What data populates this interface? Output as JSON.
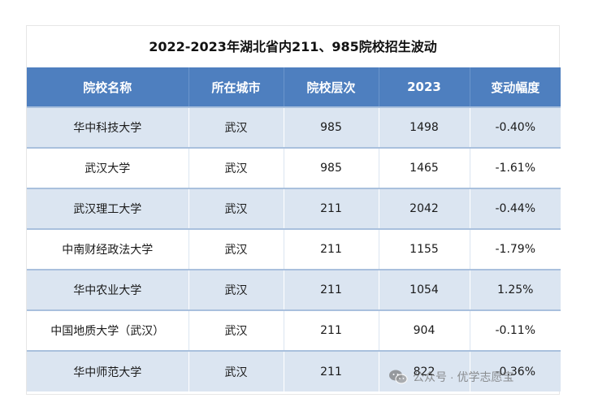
{
  "title": "2022-2023年湖北省内211、985院校招生波动",
  "headers": [
    "院校名称",
    "所在城市",
    "院校层次",
    "2023",
    "变动幅度"
  ],
  "rows": [
    [
      "华中科技大学",
      "武汉",
      "985",
      "1498",
      "-0.40%"
    ],
    [
      "武汉大学",
      "武汉",
      "985",
      "1465",
      "-1.61%"
    ],
    [
      "武汉理工大学",
      "武汉",
      "211",
      "2042",
      "-0.44%"
    ],
    [
      "中南财经政法大学",
      "武汉",
      "211",
      "1155",
      "-1.79%"
    ],
    [
      "华中农业大学",
      "武汉",
      "211",
      "1054",
      "1.25%"
    ],
    [
      "中国地质大学（武汉）",
      "武汉",
      "211",
      "904",
      "-0.11%"
    ],
    [
      "华中师范大学",
      "武汉",
      "211",
      "822",
      "-0.36%"
    ]
  ],
  "watermark": {
    "icon": "wechat-icon",
    "text": "公众号 · 优学志愿宝"
  },
  "colors": {
    "header_bg": "#4e7fbf",
    "row_alt_bg": "#dbe5f1",
    "row_bg": "#ffffff",
    "divider": "#a9c0dd"
  }
}
